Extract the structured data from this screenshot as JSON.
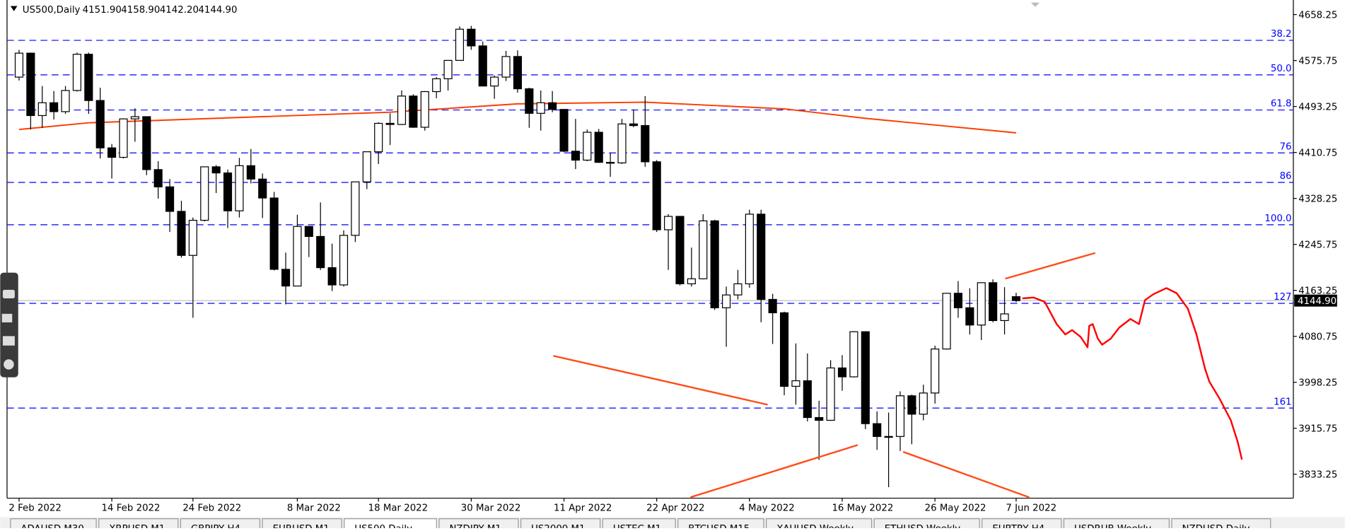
{
  "chart_data": {
    "type": "candlestick",
    "title": "US500,Daily",
    "header_ohlc": [
      "4151.90",
      "4158.90",
      "4142.20",
      "4144.90"
    ],
    "categories": [
      "2 Feb 2022",
      null,
      null,
      null,
      null,
      null,
      null,
      null,
      "14 Feb 2022",
      null,
      null,
      null,
      null,
      null,
      null,
      "24 Feb 2022",
      null,
      null,
      null,
      null,
      null,
      null,
      null,
      null,
      "8 Mar 2022",
      null,
      null,
      null,
      null,
      null,
      null,
      "18 Mar 2022",
      null,
      null,
      null,
      null,
      null,
      null,
      null,
      "30 Mar 2022",
      null,
      null,
      null,
      null,
      null,
      null,
      null,
      "11 Apr 2022",
      null,
      null,
      null,
      null,
      null,
      null,
      null,
      "22 Apr 2022",
      null,
      null,
      null,
      null,
      null,
      null,
      null,
      "4 May 2022",
      null,
      null,
      null,
      null,
      null,
      null,
      null,
      "16 May 2022",
      null,
      null,
      null,
      null,
      null,
      null,
      null,
      "26 May 2022",
      null,
      null,
      null,
      null,
      null,
      null,
      "7 Jun 2022"
    ],
    "open": [
      4546,
      4589,
      4477,
      4500,
      4484,
      4522,
      4587,
      4504,
      4419,
      4402,
      4471,
      4475,
      4380,
      4349,
      4305,
      4226,
      4289,
      4385,
      4374,
      4306,
      4387,
      4363,
      4329,
      4201,
      4171,
      4278,
      4260,
      4204,
      4173,
      4262,
      4358,
      4412,
      4463,
      4461,
      4512,
      4456,
      4520,
      4543,
      4576,
      4632,
      4602,
      4530,
      4546,
      4583,
      4525,
      4481,
      4500,
      4488,
      4413,
      4397,
      4447,
      4393,
      4392,
      4462,
      4459,
      4394,
      4272,
      4296,
      4175,
      4184,
      4288,
      4132,
      4155,
      4175,
      4300,
      4147,
      4123,
      3991,
      4001,
      3935,
      3930,
      4024,
      4008,
      4089,
      3924,
      3901,
      3901,
      3974,
      3941,
      3979,
      4058,
      4158,
      4132,
      4101,
      4177,
      4109,
      4151.9
    ],
    "high": [
      4595,
      4590,
      4530,
      4521,
      4530,
      4590,
      4590,
      4527,
      4426,
      4472,
      4490,
      4475,
      4395,
      4363,
      4324,
      4294,
      4385,
      4388,
      4380,
      4401,
      4417,
      4373,
      4340,
      4231,
      4299,
      4279,
      4321,
      4247,
      4271,
      4358,
      4412,
      4465,
      4481,
      4522,
      4515,
      4521,
      4546,
      4576,
      4637,
      4638,
      4610,
      4549,
      4593,
      4594,
      4527,
      4522,
      4521,
      4488,
      4471,
      4452,
      4453,
      4410,
      4471,
      4488,
      4512,
      4397,
      4300,
      4296,
      4240,
      4300,
      4290,
      4170,
      4200,
      4308,
      4308,
      4157,
      4125,
      4068,
      4050,
      3965,
      4038,
      4047,
      4090,
      4090,
      3946,
      3944,
      3982,
      3976,
      3994,
      4064,
      4158,
      4180,
      4167,
      4177,
      4183,
      4169,
      4158.9
    ],
    "low": [
      4540,
      4452,
      4455,
      4470,
      4480,
      4520,
      4480,
      4400,
      4364,
      4400,
      4430,
      4370,
      4328,
      4268,
      4222,
      4114,
      4287,
      4338,
      4275,
      4294,
      4355,
      4293,
      4199,
      4138,
      4171,
      4223,
      4200,
      4162,
      4170,
      4250,
      4345,
      4390,
      4424,
      4460,
      4455,
      4450,
      4508,
      4522,
      4576,
      4595,
      4530,
      4507,
      4539,
      4518,
      4455,
      4450,
      4483,
      4411,
      4381,
      4395,
      4392,
      4367,
      4390,
      4456,
      4385,
      4268,
      4200,
      4172,
      4170,
      4183,
      4128,
      4062,
      4147,
      4168,
      4106,
      4067,
      3975,
      3958,
      3928,
      3859,
      3929,
      3983,
      4007,
      3914,
      3877,
      3810,
      3875,
      3887,
      3930,
      3960,
      4057,
      4114,
      4084,
      4074,
      4106,
      4084,
      4142.2
    ],
    "close": [
      4589,
      4477,
      4500,
      4484,
      4522,
      4587,
      4504,
      4419,
      4402,
      4471,
      4475,
      4380,
      4349,
      4305,
      4226,
      4289,
      4385,
      4374,
      4306,
      4387,
      4363,
      4329,
      4201,
      4171,
      4278,
      4260,
      4204,
      4173,
      4262,
      4358,
      4412,
      4463,
      4461,
      4512,
      4456,
      4520,
      4543,
      4576,
      4632,
      4602,
      4530,
      4546,
      4583,
      4525,
      4481,
      4500,
      4488,
      4413,
      4397,
      4447,
      4393,
      4392,
      4462,
      4459,
      4394,
      4272,
      4296,
      4175,
      4184,
      4288,
      4132,
      4155,
      4175,
      4300,
      4147,
      4123,
      3991,
      4001,
      3935,
      3930,
      4024,
      4008,
      4089,
      3924,
      3901,
      3901,
      3974,
      3941,
      3979,
      4058,
      4158,
      4132,
      4101,
      4177,
      4109,
      4121,
      4144.9
    ],
    "up_color": "#ffffff",
    "down_color": "#000000",
    "ylim": [
      3791.8,
      4684.4
    ],
    "yticks": [
      4658.25,
      4575.75,
      4493.25,
      4410.75,
      4328.25,
      4245.75,
      4163.25,
      4080.75,
      3998.25,
      3915.75,
      3833.25
    ],
    "current_price": {
      "value": 4144.9,
      "label": "4144.90"
    },
    "fib_levels": [
      {
        "value": 4612,
        "label": "38.2"
      },
      {
        "value": 4550,
        "label": "50.0"
      },
      {
        "value": 4487,
        "label": "61.8"
      },
      {
        "value": 4410,
        "label": "76"
      },
      {
        "value": 4357,
        "label": "86"
      },
      {
        "value": 4281,
        "label": "100.0"
      },
      {
        "value": 4140,
        "label": "127"
      },
      {
        "value": 3952,
        "label": "161"
      }
    ],
    "fib_color": "#0000ff",
    "ma": {
      "color": "#ff3c00",
      "x": [
        0,
        6,
        21,
        32,
        43,
        54,
        66,
        73,
        86
      ],
      "values": [
        4452,
        4464,
        4475,
        4483,
        4498,
        4501,
        4489,
        4472,
        4446
      ]
    },
    "tabs": [
      "ADAUSD,M30",
      "XRPUSD,M1",
      "GBPJPY,H4",
      "EURUSD,M1",
      "US500,Daily",
      "NZDJPY,M1",
      "US2000,M1",
      "USTEC,M1",
      "BTCUSD,M15",
      "XAUUSD,Weekly",
      "ETHUSD,Weekly",
      "EURTRY,H4",
      "USDRUB,Weekly",
      "NZDUSD,Daily"
    ],
    "active_tab": "US500,Daily"
  }
}
